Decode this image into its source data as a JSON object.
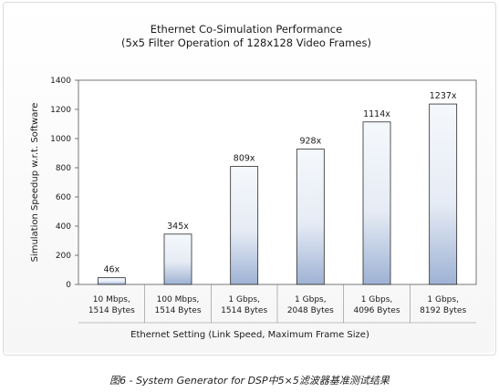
{
  "chart_data": {
    "type": "bar",
    "title": "Ethernet Co-Simulation Performance",
    "subtitle": "(5x5 Filter Operation of 128x128 Video Frames)",
    "xlabel": "Ethernet Setting (Link Speed, Maximum Frame Size)",
    "ylabel": "Simulation Speedup w.r.t. Software",
    "ylim": [
      0,
      1400
    ],
    "yticks": [
      0,
      200,
      400,
      600,
      800,
      1000,
      1200,
      1400
    ],
    "categories": [
      [
        "10 Mbps,",
        "1514 Bytes"
      ],
      [
        "100 Mbps,",
        "1514 Bytes"
      ],
      [
        "1 Gbps,",
        "1514 Bytes"
      ],
      [
        "1 Gbps,",
        "2048 Bytes"
      ],
      [
        "1 Gbps,",
        "4096 Bytes"
      ],
      [
        "1 Gbps,",
        "8192 Bytes"
      ]
    ],
    "values": [
      46,
      345,
      809,
      928,
      1114,
      1237
    ],
    "value_labels": [
      "46x",
      "345x",
      "809x",
      "928x",
      "1114x",
      "1237x"
    ],
    "grid": false,
    "bar_gradient": [
      "#f4f7fb",
      "#9fb3d6"
    ]
  },
  "caption": "图6 - System Generator for DSP中5×5滤波器基准测试结果"
}
